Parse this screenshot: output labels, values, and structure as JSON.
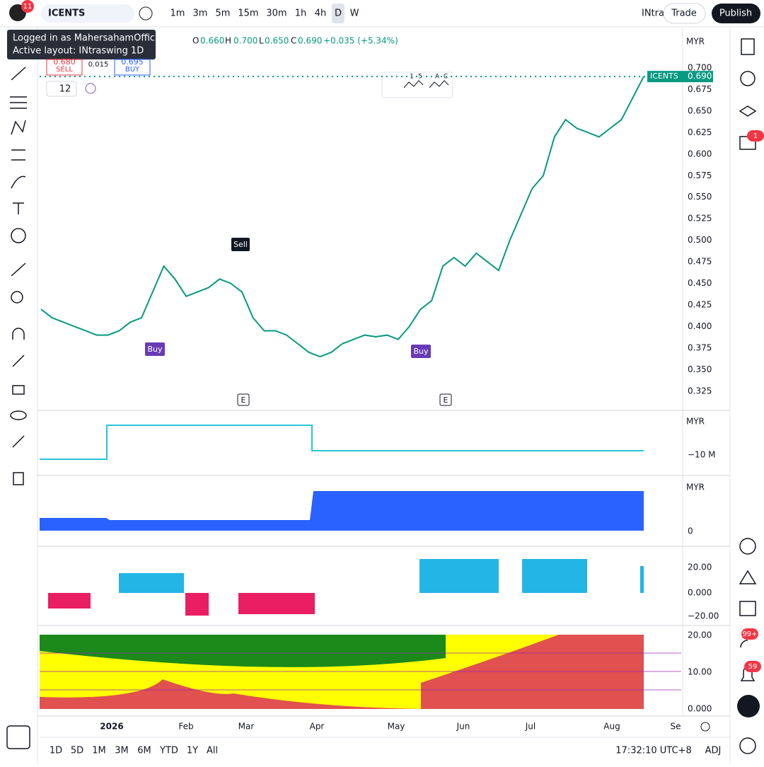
{
  "toolbar": {
    "notification_count": "11",
    "symbol": "ICENTS",
    "intervals": [
      "1m",
      "3m",
      "5m",
      "15m",
      "30m",
      "1h",
      "4h",
      "D",
      "W"
    ],
    "layout_name": "INtra",
    "trade": "Trade",
    "publish": "Publish"
  },
  "tooltip": {
    "line1": "Logged in as MahersahamOfficial",
    "line2": "Active layout: INtraswing 1D"
  },
  "legend": {
    "open_label": "O",
    "open": "0.660",
    "high_label": "H",
    "high": "0.700",
    "low_label": "L",
    "low": "0.650",
    "close_label": "C",
    "close": "0.690",
    "change": "+0.035 (+5.34%)"
  },
  "order_panel": {
    "sell_price": "0.680",
    "sell": "SELL",
    "spread": "0.015",
    "buy_price": "0.695",
    "buy": "BUY"
  },
  "indicator_length": "12",
  "pattern_labels": [
    "1",
    "5",
    "A",
    "C"
  ],
  "currency": "MYR",
  "price_axis": [
    "0.700",
    "0.675",
    "0.650",
    "0.625",
    "0.600",
    "0.575",
    "0.550",
    "0.525",
    "0.500",
    "0.475",
    "0.450",
    "0.425",
    "0.400",
    "0.375",
    "0.350",
    "0.325"
  ],
  "last_price": {
    "symbol": "ICENTS",
    "price": "0.690"
  },
  "price_close": [
    0.42,
    0.41,
    0.405,
    0.4,
    0.395,
    0.39,
    0.39,
    0.395,
    0.405,
    0.41,
    0.44,
    0.47,
    0.455,
    0.435,
    0.44,
    0.445,
    0.455,
    0.45,
    0.44,
    0.41,
    0.395,
    0.395,
    0.39,
    0.38,
    0.37,
    0.365,
    0.37,
    0.38,
    0.385,
    0.39,
    0.388,
    0.39,
    0.385,
    0.4,
    0.42,
    0.43,
    0.47,
    0.48,
    0.47,
    0.485,
    0.475,
    0.465,
    0.5,
    0.53,
    0.56,
    0.575,
    0.62,
    0.64,
    0.63,
    0.625,
    0.62,
    0.63,
    0.64,
    0.665,
    0.69
  ],
  "markers": {
    "sell": "Sell",
    "buy": "Buy",
    "earnings": "E"
  },
  "panels": [
    {
      "currency": "MYR",
      "labels": [
        "−10 M"
      ]
    },
    {
      "currency": "MYR",
      "labels": [
        "0"
      ]
    },
    {
      "labels": [
        "20.00",
        "0.000",
        "−20.00"
      ]
    },
    {
      "labels": [
        "20.00",
        "10.00",
        "0.000"
      ]
    }
  ],
  "time_axis": [
    "2026",
    "Feb",
    "Mar",
    "Apr",
    "May",
    "Jun",
    "Jul",
    "Aug",
    "Se"
  ],
  "ranges": [
    "1D",
    "5D",
    "1M",
    "3M",
    "6M",
    "YTD",
    "1Y",
    "All"
  ],
  "clock": "17:32:10 UTC+8",
  "adjust": "ADJ",
  "sidebar_badges": [
    "1",
    "99+",
    "59"
  ]
}
